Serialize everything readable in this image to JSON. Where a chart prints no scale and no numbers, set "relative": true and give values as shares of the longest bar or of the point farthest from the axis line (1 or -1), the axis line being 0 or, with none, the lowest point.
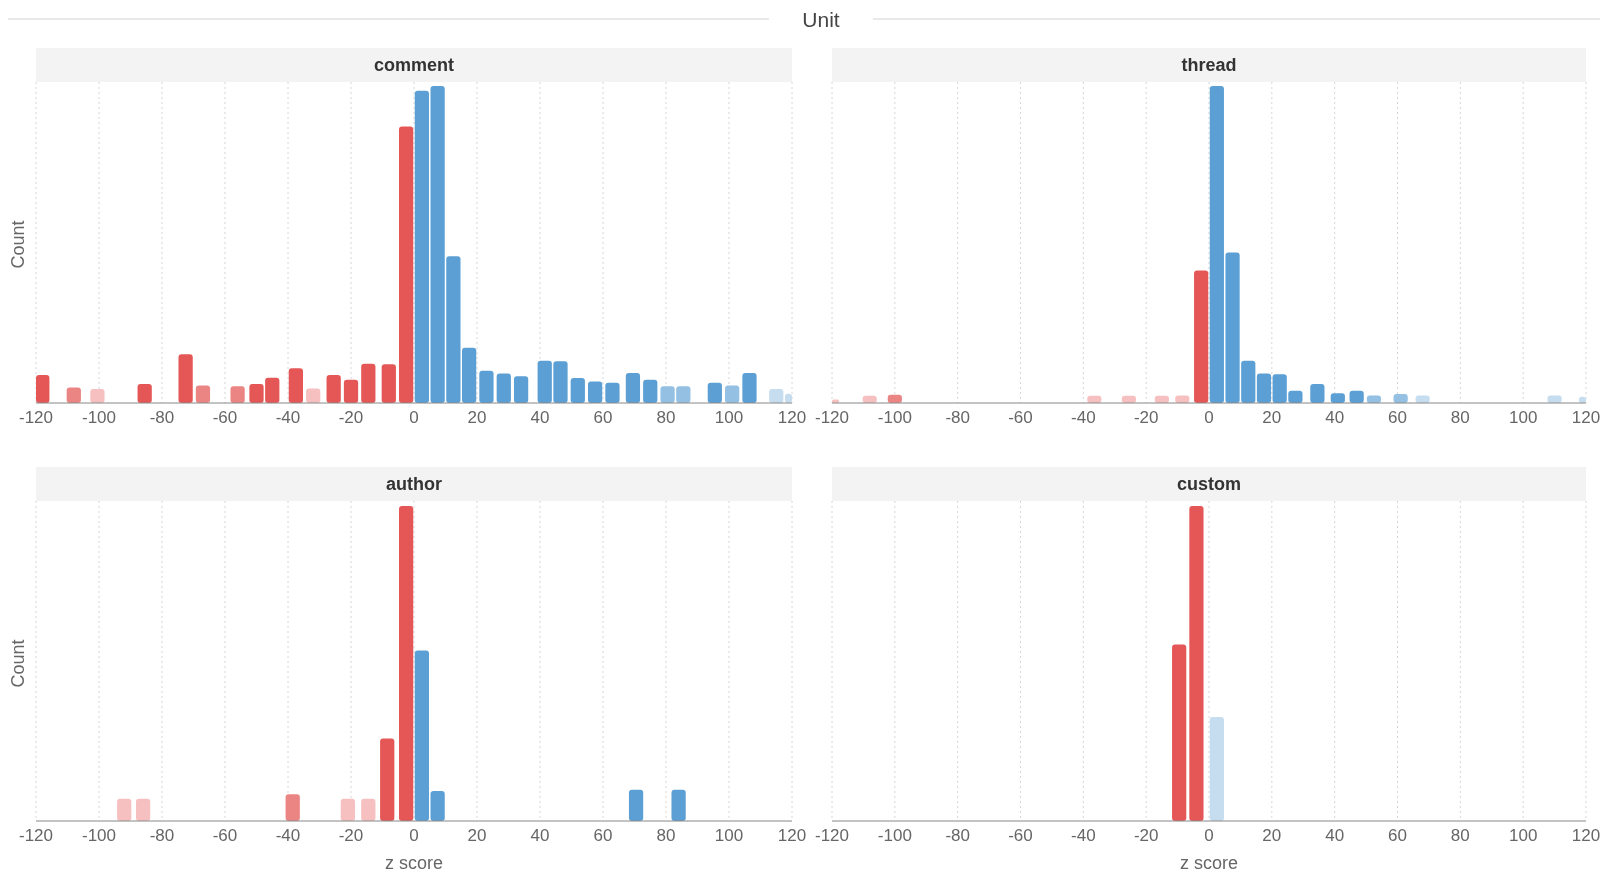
{
  "chart_data": [
    {
      "type": "bar",
      "title": "comment",
      "ylabel": "Count",
      "annotations": [
        "Unit"
      ],
      "relative": true,
      "grid": "x",
      "xlim": [
        -120,
        120
      ],
      "xticks": [
        -120,
        -100,
        -80,
        -60,
        -40,
        -20,
        0,
        20,
        40,
        60,
        80,
        100,
        120
      ],
      "x": [
        -118,
        -108,
        -100.5,
        -85.5,
        -72.5,
        -67,
        -56,
        -50,
        -45,
        -37.5,
        -32,
        -25.5,
        -20,
        -14.5,
        -8,
        -2.5,
        2.5,
        7.5,
        12.5,
        17.5,
        23,
        28.5,
        34,
        41.5,
        46.5,
        52,
        57.5,
        63,
        69.5,
        75,
        80.5,
        85.5,
        95.5,
        101,
        106.5,
        115,
        120
      ],
      "values": [
        0.088,
        0.049,
        0.044,
        0.06,
        0.154,
        0.055,
        0.053,
        0.06,
        0.08,
        0.11,
        0.046,
        0.088,
        0.073,
        0.124,
        0.122,
        0.872,
        0.985,
        1,
        0.463,
        0.174,
        0.102,
        0.093,
        0.084,
        0.133,
        0.132,
        0.079,
        0.068,
        0.064,
        0.095,
        0.073,
        0.053,
        0.053,
        0.064,
        0.055,
        0.095,
        0.044,
        0.029
      ],
      "colors": [
        "#e45756",
        "#eb8583",
        "#f5c0bf",
        "#e45756",
        "#e45756",
        "#eb8583",
        "#eb8583",
        "#e45756",
        "#e45756",
        "#e45756",
        "#f5c0bf",
        "#e45756",
        "#e45756",
        "#e45756",
        "#e45756",
        "#e45756",
        "#5b9fd4",
        "#5b9fd4",
        "#5b9fd4",
        "#5b9fd4",
        "#5b9fd4",
        "#5b9fd4",
        "#5b9fd4",
        "#5b9fd4",
        "#5b9fd4",
        "#5b9fd4",
        "#5b9fd4",
        "#5b9fd4",
        "#5b9fd4",
        "#5b9fd4",
        "#93c0e3",
        "#93c0e3",
        "#5b9fd4",
        "#93c0e3",
        "#5b9fd4",
        "#c6ddef",
        "#c6ddef"
      ]
    },
    {
      "type": "bar",
      "title": "thread",
      "relative": true,
      "grid": "x",
      "xlim": [
        -120,
        120
      ],
      "xticks": [
        -120,
        -100,
        -80,
        -60,
        -40,
        -20,
        0,
        20,
        40,
        60,
        80,
        100,
        120
      ],
      "x": [
        -120,
        -108,
        -100,
        -36.5,
        -25.5,
        -15,
        -8.5,
        -2.5,
        2.5,
        7.5,
        12.5,
        17.5,
        22.5,
        27.5,
        34.5,
        41,
        47,
        52.5,
        61,
        68,
        110,
        120
      ],
      "values": [
        0.011,
        0.023,
        0.026,
        0.023,
        0.023,
        0.023,
        0.024,
        0.418,
        1,
        0.475,
        0.133,
        0.093,
        0.091,
        0.039,
        0.06,
        0.031,
        0.039,
        0.024,
        0.028,
        0.024,
        0.024,
        0.02
      ],
      "colors": [
        "#f5c0bf",
        "#f5c0bf",
        "#eb8583",
        "#f5c0bf",
        "#f5c0bf",
        "#f5c0bf",
        "#f5c0bf",
        "#e45756",
        "#5b9fd4",
        "#5b9fd4",
        "#5b9fd4",
        "#5b9fd4",
        "#5b9fd4",
        "#5b9fd4",
        "#5b9fd4",
        "#5b9fd4",
        "#5b9fd4",
        "#93c0e3",
        "#93c0e3",
        "#c6ddef",
        "#c6ddef",
        "#c6ddef"
      ]
    },
    {
      "type": "bar",
      "title": "author",
      "xlabel": "z score",
      "ylabel": "Count",
      "relative": true,
      "grid": "x",
      "xlim": [
        -120,
        120
      ],
      "xticks": [
        -120,
        -100,
        -80,
        -60,
        -40,
        -20,
        0,
        20,
        40,
        60,
        80,
        100,
        120
      ],
      "x": [
        -92,
        -86,
        -38.5,
        -21,
        -14.5,
        -8.5,
        -2.5,
        2.5,
        7.5,
        70.5,
        84
      ],
      "values": [
        0.071,
        0.071,
        0.085,
        0.071,
        0.071,
        0.262,
        1,
        0.541,
        0.095,
        0.099,
        0.099
      ],
      "colors": [
        "#f5c0bf",
        "#f5c0bf",
        "#eb8583",
        "#f5c0bf",
        "#f5c0bf",
        "#e45756",
        "#e45756",
        "#5b9fd4",
        "#5b9fd4",
        "#5b9fd4",
        "#5b9fd4"
      ]
    },
    {
      "type": "bar",
      "title": "custom",
      "xlabel": "z score",
      "relative": true,
      "grid": "x",
      "xlim": [
        -120,
        120
      ],
      "xticks": [
        -120,
        -100,
        -80,
        -60,
        -40,
        -20,
        0,
        20,
        40,
        60,
        80,
        100,
        120
      ],
      "x": [
        -9.5,
        -4,
        2.5
      ],
      "values": [
        0.56,
        1,
        0.33
      ],
      "colors": [
        "#e45756",
        "#e45756",
        "#c6ddef"
      ]
    }
  ]
}
